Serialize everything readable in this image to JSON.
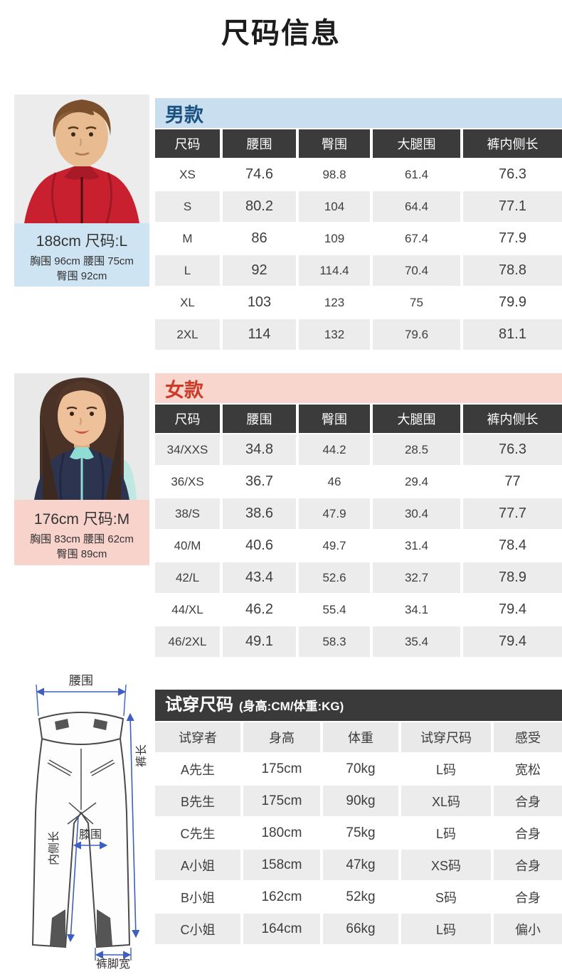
{
  "page": {
    "title": "尺码信息"
  },
  "men": {
    "section_label": "男款",
    "model": {
      "line1": "188cm 尺码:L",
      "line2": "胸围 96cm 腰围 75cm",
      "line3": "臀围 92cm"
    },
    "table": {
      "headers": [
        "尺码",
        "腰围",
        "臀围",
        "大腿围",
        "裤内侧长"
      ],
      "rows": [
        [
          "XS",
          "74.6",
          "98.8",
          "61.4",
          "76.3"
        ],
        [
          "S",
          "80.2",
          "104",
          "64.4",
          "77.1"
        ],
        [
          "M",
          "86",
          "109",
          "67.4",
          "77.9"
        ],
        [
          "L",
          "92",
          "114.4",
          "70.4",
          "78.8"
        ],
        [
          "XL",
          "103",
          "123",
          "75",
          "79.9"
        ],
        [
          "2XL",
          "114",
          "132",
          "79.6",
          "81.1"
        ]
      ]
    }
  },
  "women": {
    "section_label": "女款",
    "model": {
      "line1": "176cm 尺码:M",
      "line2": "胸围 83cm 腰围 62cm",
      "line3": "臀围 89cm"
    },
    "table": {
      "headers": [
        "尺码",
        "腰围",
        "臀围",
        "大腿围",
        "裤内侧长"
      ],
      "rows": [
        [
          "34/XXS",
          "34.8",
          "44.2",
          "28.5",
          "76.3"
        ],
        [
          "36/XS",
          "36.7",
          "46",
          "29.4",
          "77"
        ],
        [
          "38/S",
          "38.6",
          "47.9",
          "30.4",
          "77.7"
        ],
        [
          "40/M",
          "40.6",
          "49.7",
          "31.4",
          "78.4"
        ],
        [
          "42/L",
          "43.4",
          "52.6",
          "32.7",
          "78.9"
        ],
        [
          "44/XL",
          "46.2",
          "55.4",
          "34.1",
          "79.4"
        ],
        [
          "46/2XL",
          "49.1",
          "58.3",
          "35.4",
          "79.4"
        ]
      ]
    }
  },
  "tryon": {
    "title": "试穿尺码",
    "subtitle": "(身高:CM/体重:KG)",
    "table": {
      "headers": [
        "试穿者",
        "身高",
        "体重",
        "试穿尺码",
        "感受"
      ],
      "rows": [
        [
          "A先生",
          "175cm",
          "70kg",
          "L码",
          "宽松"
        ],
        [
          "B先生",
          "175cm",
          "90kg",
          "XL码",
          "合身"
        ],
        [
          "C先生",
          "180cm",
          "75kg",
          "L码",
          "合身"
        ],
        [
          "A小姐",
          "158cm",
          "47kg",
          "XS码",
          "合身"
        ],
        [
          "B小姐",
          "162cm",
          "52kg",
          "S码",
          "合身"
        ],
        [
          "C小姐",
          "164cm",
          "66kg",
          "L码",
          "偏小"
        ]
      ]
    }
  },
  "diagram": {
    "waist": "腰围",
    "inseam": "内侧长",
    "knee": "膝围",
    "length": "裤长",
    "hem": "裤脚宽"
  },
  "colors": {
    "men_band_bg": "#c9dff0",
    "men_band_text": "#1a5180",
    "women_band_bg": "#f8d5cd",
    "women_band_text": "#cd3a28",
    "men_info_bg": "#cfe4f3",
    "women_info_bg": "#f8d3cb",
    "table_header_bg": "#3b3b3b",
    "row_shaded_bg": "#ececec",
    "arrow_blue": "#3f5fc0"
  }
}
